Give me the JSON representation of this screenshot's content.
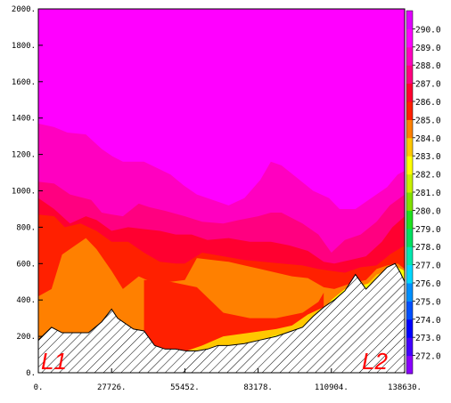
{
  "chart_data": {
    "type": "area",
    "title": "",
    "xlabel": "",
    "ylabel": "",
    "xlim": [
      0,
      138630
    ],
    "ylim": [
      0,
      2000
    ],
    "x_ticks": [
      0,
      27726,
      55452,
      83178,
      110904,
      138630
    ],
    "x_tick_labels": [
      "0.",
      "27726.",
      "55452.",
      "83178.",
      "110904.",
      "138630."
    ],
    "y_ticks": [
      0,
      200,
      400,
      600,
      800,
      1000,
      1200,
      1400,
      1600,
      1800,
      2000
    ],
    "y_tick_labels": [
      "0.",
      "200.",
      "400.",
      "600.",
      "800.",
      "1000.",
      "1200.",
      "1400.",
      "1600.",
      "1800.",
      "2000."
    ],
    "end_labels": [
      "L1",
      "L2"
    ],
    "colorbar": {
      "levels": [
        272.0,
        273.0,
        274.0,
        275.0,
        276.0,
        277.0,
        278.0,
        279.0,
        280.0,
        281.0,
        282.0,
        283.0,
        284.0,
        285.0,
        286.0,
        287.0,
        288.0,
        289.0,
        290.0
      ],
      "labels": [
        "272.0",
        "273.0",
        "274.0",
        "275.0",
        "276.0",
        "277.0",
        "278.0",
        "279.0",
        "280.0",
        "281.0",
        "282.0",
        "283.0",
        "284.0",
        "285.0",
        "286.0",
        "287.0",
        "288.0",
        "289.0",
        "290.0"
      ],
      "colors": [
        "#8a00ff",
        "#4400ff",
        "#0000ff",
        "#0050ff",
        "#0090ff",
        "#00d8ff",
        "#00e8b0",
        "#00e060",
        "#20e020",
        "#80e000",
        "#c8f000",
        "#ffff00",
        "#ffc800",
        "#ff8000",
        "#ff2000",
        "#ff0030",
        "#ff0080",
        "#ff00c0",
        "#ff00ff",
        "#e000ff"
      ]
    },
    "layers": [
      {
        "color": "#ff00ff",
        "top_y": 2000,
        "x": [
          0,
          138630
        ],
        "bottom_y": [
          0,
          0
        ]
      },
      {
        "color": "#ff00c0",
        "x": [
          0,
          6000,
          11000,
          18000,
          24000,
          28000,
          32000,
          40000,
          50000,
          55000,
          60000,
          66000,
          72000,
          78000,
          84000,
          88000,
          92000,
          98000,
          104000,
          110000,
          114000,
          120000,
          126000,
          132000,
          136000,
          138630
        ],
        "y": [
          1370,
          1350,
          1320,
          1310,
          1230,
          1190,
          1160,
          1160,
          1090,
          1030,
          980,
          950,
          920,
          960,
          1060,
          1160,
          1140,
          1070,
          1000,
          960,
          900,
          900,
          960,
          1020,
          1090,
          1110
        ]
      },
      {
        "color": "#ff0080",
        "x": [
          0,
          6000,
          12000,
          20000,
          24000,
          27726,
          32000,
          38000,
          42000,
          48000,
          55452,
          62000,
          70000,
          76000,
          83178,
          88000,
          92000,
          100000,
          106000,
          110904,
          116000,
          122000,
          128000,
          133000,
          138630
        ],
        "y": [
          1050,
          1040,
          980,
          950,
          880,
          870,
          860,
          930,
          910,
          890,
          860,
          830,
          820,
          840,
          860,
          880,
          880,
          820,
          760,
          660,
          730,
          760,
          830,
          920,
          980
        ]
      },
      {
        "color": "#ff0030",
        "x": [
          0,
          6000,
          12000,
          18000,
          22000,
          27726,
          34000,
          40000,
          46000,
          52000,
          58000,
          64000,
          72000,
          80000,
          88000,
          95000,
          102000,
          108000,
          112000,
          118000,
          124000,
          130000,
          134000,
          138630
        ],
        "y": [
          960,
          900,
          820,
          860,
          840,
          780,
          800,
          790,
          780,
          760,
          760,
          730,
          740,
          720,
          720,
          700,
          670,
          610,
          600,
          620,
          640,
          720,
          800,
          860
        ]
      },
      {
        "color": "#ff2000",
        "x": [
          0,
          6000,
          10000,
          16000,
          22000,
          27726,
          34000,
          40000,
          46000,
          52000,
          55452,
          62000,
          70000,
          78000,
          85000,
          92000,
          100000,
          106000,
          110904,
          116000,
          122000,
          128000,
          133000,
          138630
        ],
        "y": [
          870,
          860,
          800,
          820,
          780,
          720,
          720,
          660,
          610,
          600,
          600,
          660,
          640,
          620,
          610,
          600,
          590,
          570,
          560,
          550,
          580,
          590,
          650,
          700
        ]
      },
      {
        "color": "#ff8000",
        "x": [
          0,
          5000,
          9000,
          13000,
          18000,
          22000,
          27726,
          32000,
          38000,
          44000,
          50000,
          55452,
          60000,
          66000,
          72000,
          78000,
          84000,
          90000,
          96000,
          102000,
          108000,
          112000,
          118000,
          124000,
          128000,
          132000,
          136000,
          138630
        ],
        "y": [
          420,
          460,
          650,
          690,
          740,
          680,
          560,
          460,
          530,
          490,
          500,
          510,
          630,
          620,
          610,
          590,
          570,
          550,
          530,
          520,
          470,
          460,
          490,
          510,
          570,
          590,
          600,
          570
        ]
      },
      {
        "color": "#ff2000",
        "x": [
          40000,
          50000,
          60000,
          70000,
          80000,
          90000,
          100000,
          106000,
          108000
        ],
        "y": [
          510,
          500,
          470,
          330,
          300,
          300,
          330,
          390,
          440
        ]
      },
      {
        "color": "#ffc800",
        "x": [
          56000,
          62000,
          70000,
          80000,
          90000,
          96000,
          102000,
          110904,
          118000,
          124000,
          128000,
          134000,
          138630
        ],
        "y": [
          120,
          150,
          200,
          220,
          240,
          260,
          320,
          380,
          420,
          480,
          540,
          570,
          560
        ]
      },
      {
        "color": "#ffff00",
        "x": [
          88000,
          94000,
          100000,
          104000,
          110904,
          116000,
          122000,
          128000,
          132000,
          136000,
          138630
        ],
        "y": [
          200,
          220,
          240,
          280,
          400,
          460,
          480,
          500,
          560,
          580,
          560
        ]
      }
    ],
    "terrain": {
      "x": [
        0,
        5000,
        9000,
        13000,
        19000,
        24000,
        27726,
        30000,
        36000,
        40000,
        44000,
        48000,
        52000,
        56000,
        60000,
        64000,
        68000,
        72000,
        78000,
        84000,
        90000,
        96000,
        100000,
        104000,
        108000,
        112000,
        116000,
        120000,
        124000,
        128000,
        132000,
        135000,
        137000,
        138630
      ],
      "y": [
        180,
        250,
        220,
        220,
        220,
        280,
        350,
        300,
        240,
        230,
        150,
        130,
        130,
        120,
        120,
        130,
        150,
        150,
        160,
        180,
        200,
        230,
        250,
        310,
        360,
        400,
        450,
        540,
        460,
        520,
        580,
        600,
        550,
        500
      ]
    }
  }
}
